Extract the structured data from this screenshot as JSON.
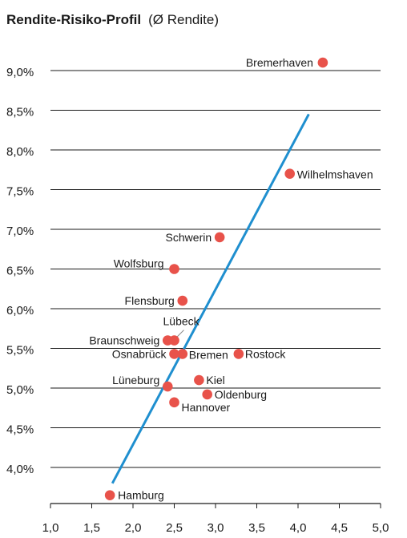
{
  "chart_data": {
    "type": "scatter",
    "title": "Rendite-Risiko-Profil",
    "subtitle": "(Ø Rendite)",
    "xlabel": "",
    "ylabel": "",
    "xlim": [
      1.0,
      5.0
    ],
    "ylim": [
      3.7,
      9.3
    ],
    "x_ticks": [
      "1,0",
      "1,5",
      "2,0",
      "2,5",
      "3,0",
      "3,5",
      "4,0",
      "4,5",
      "5,0"
    ],
    "y_ticks": [
      "4,0%",
      "4,5%",
      "5,0%",
      "5,5%",
      "6,0%",
      "6,5%",
      "7,0%",
      "7,5%",
      "8,0%",
      "8,5%",
      "9,0%"
    ],
    "grid": "horizontal",
    "point_color": "#e8524a",
    "trend_color": "#1f8fcf",
    "trendline": {
      "x": [
        1.75,
        4.13
      ],
      "y": [
        3.8,
        8.45
      ]
    },
    "points": [
      {
        "name": "Bremerhaven",
        "x": 4.3,
        "y": 9.1
      },
      {
        "name": "Wilhelmshaven",
        "x": 3.9,
        "y": 7.7
      },
      {
        "name": "Schwerin",
        "x": 3.05,
        "y": 6.9
      },
      {
        "name": "Wolfsburg",
        "x": 2.5,
        "y": 6.5
      },
      {
        "name": "Flensburg",
        "x": 2.6,
        "y": 6.1
      },
      {
        "name": "Lübeck",
        "x": 2.5,
        "y": 5.6
      },
      {
        "name": "Braunschweig",
        "x": 2.42,
        "y": 5.6
      },
      {
        "name": "Osnabrück",
        "x": 2.5,
        "y": 5.43
      },
      {
        "name": "Bremen",
        "x": 2.6,
        "y": 5.43
      },
      {
        "name": "Rostock",
        "x": 3.28,
        "y": 5.43
      },
      {
        "name": "Lüneburg",
        "x": 2.42,
        "y": 5.02
      },
      {
        "name": "Kiel",
        "x": 2.8,
        "y": 5.1
      },
      {
        "name": "Oldenburg",
        "x": 2.9,
        "y": 4.92
      },
      {
        "name": "Hannover",
        "x": 2.5,
        "y": 4.82
      },
      {
        "name": "Hamburg",
        "x": 1.72,
        "y": 3.65
      }
    ]
  }
}
